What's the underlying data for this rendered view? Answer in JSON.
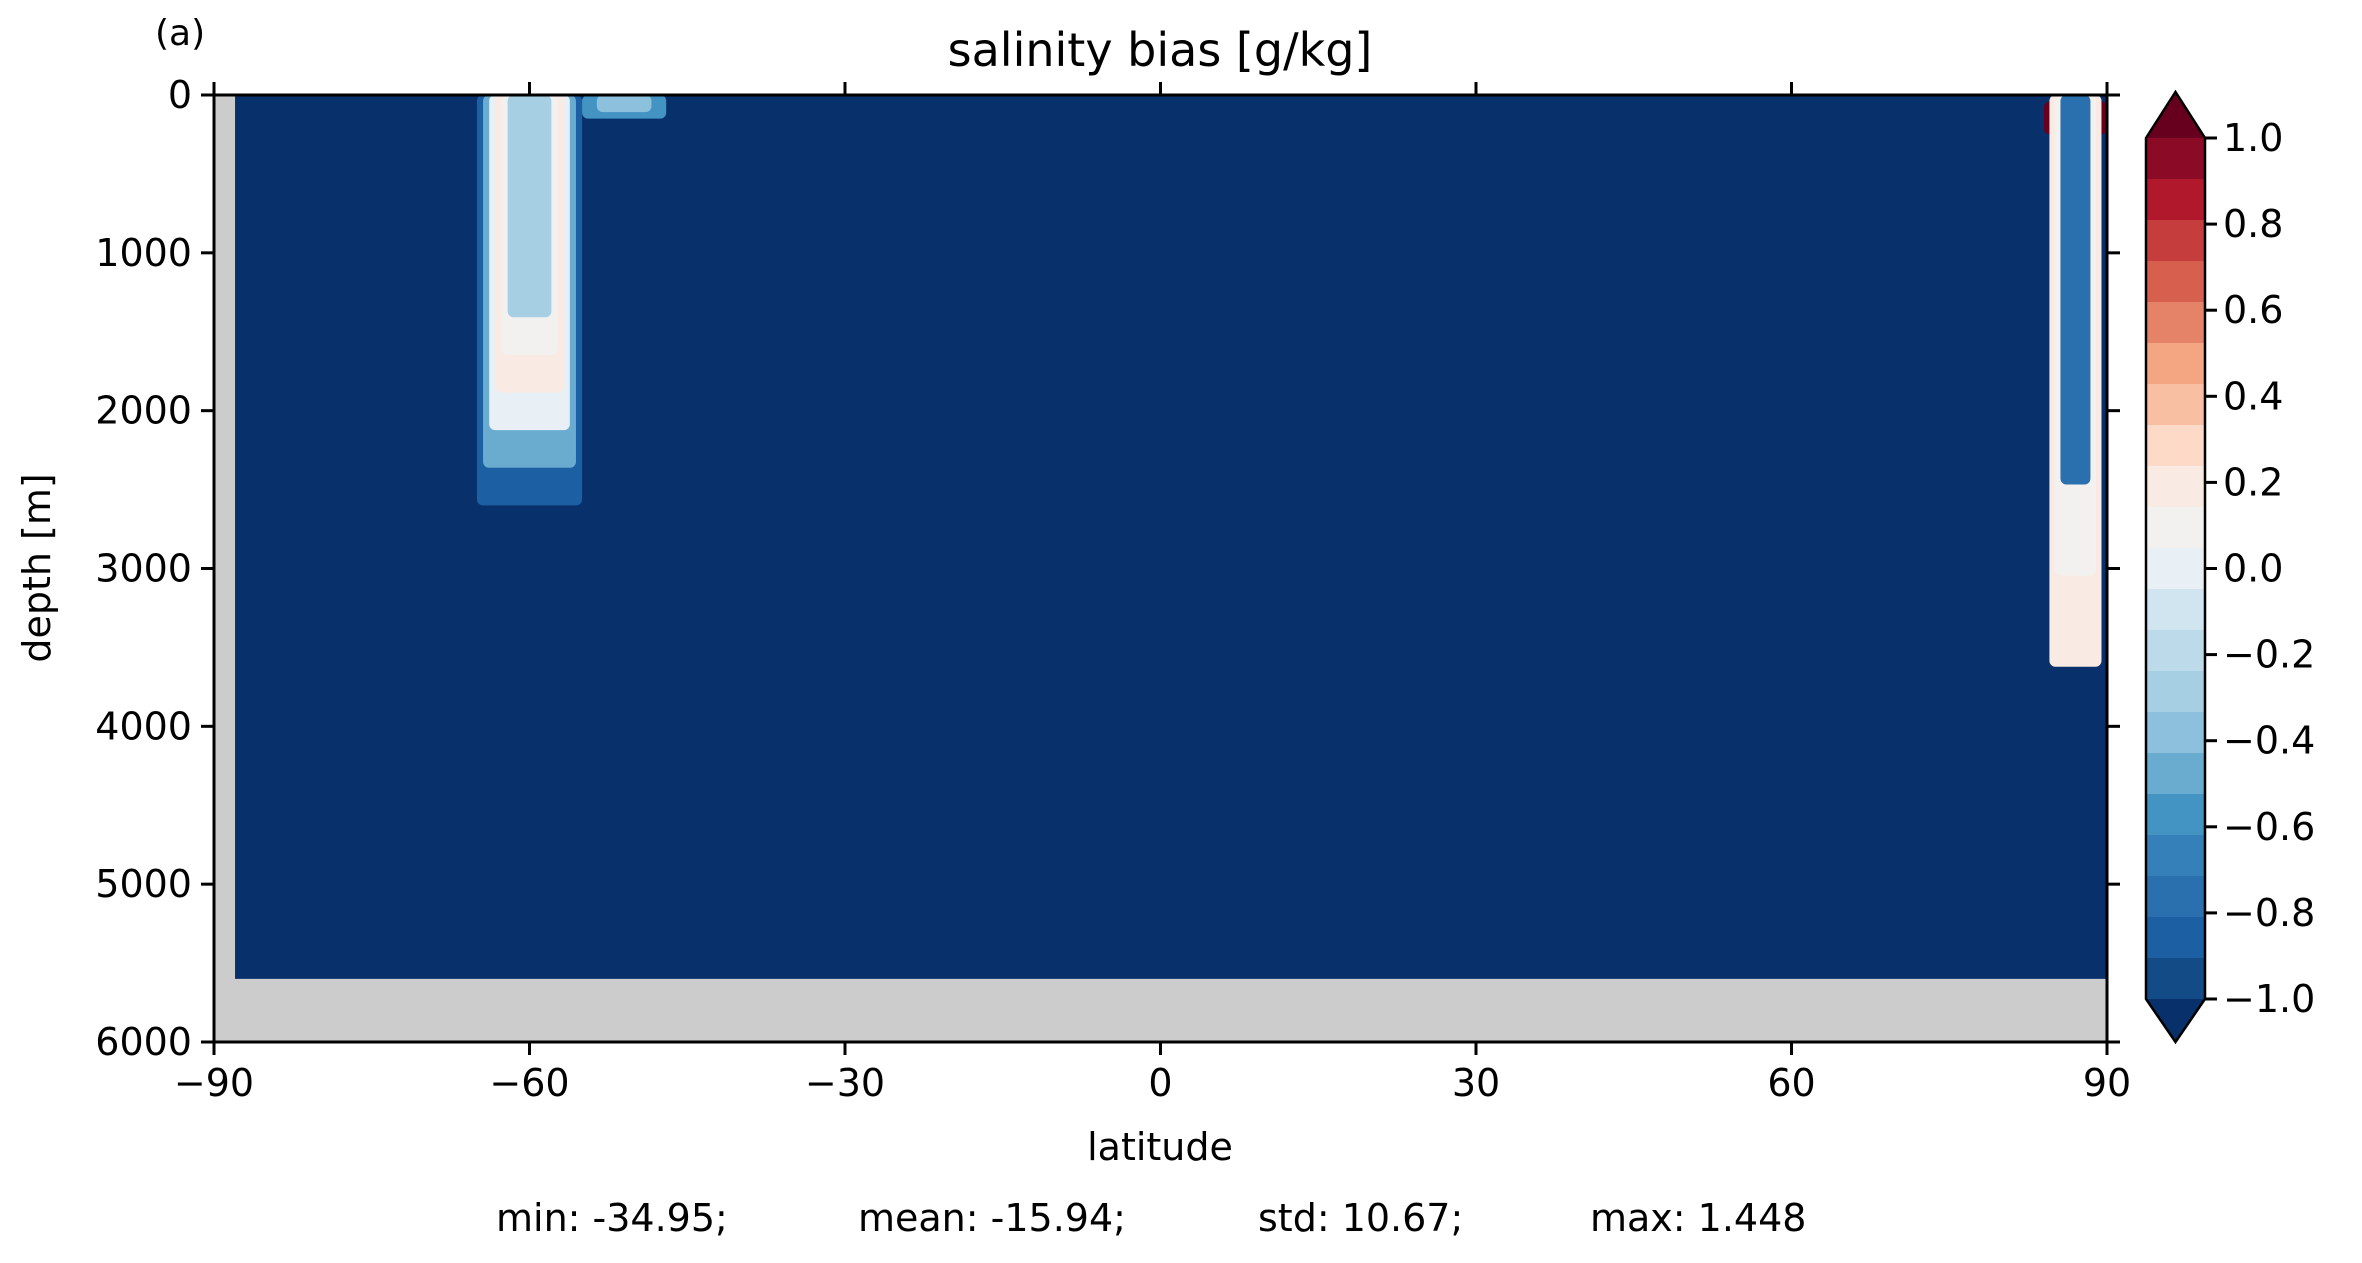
{
  "chart_data": {
    "type": "heatmap",
    "panel_label": "(a)",
    "title": "salinity bias [g/kg]",
    "xlabel": "latitude",
    "ylabel": "depth [m]",
    "xlim": [
      -90,
      90
    ],
    "ylim": [
      6000,
      0
    ],
    "xticks": [
      -90,
      -60,
      -30,
      0,
      30,
      60,
      90
    ],
    "yticks": [
      0,
      1000,
      2000,
      3000,
      4000,
      5000,
      6000
    ],
    "xtick_labels": [
      "−90",
      "−60",
      "−30",
      "0",
      "30",
      "60",
      "90"
    ],
    "ytick_labels": [
      "0",
      "1000",
      "2000",
      "3000",
      "4000",
      "5000",
      "6000"
    ],
    "background_value": -1.0,
    "ocean_bottom_depth": 5600,
    "ocean_lat_range": [
      -88,
      90
    ],
    "features": [
      {
        "region": "southern",
        "lat_range": [
          -65,
          -55
        ],
        "depth_range": [
          0,
          2600
        ],
        "values": [
          -0.9,
          -0.5,
          0.0,
          0.2,
          0.1,
          -0.3
        ]
      },
      {
        "region": "southern-tongue",
        "lat_range": [
          -55,
          -47
        ],
        "depth_range": [
          0,
          150
        ],
        "values": [
          -0.6,
          -0.4
        ]
      },
      {
        "region": "arctic",
        "lat_range": [
          84,
          90
        ],
        "depth_range": [
          0,
          4200
        ],
        "values": [
          1.0,
          0.2,
          0.1,
          -0.8
        ]
      }
    ],
    "colorbar": {
      "vmin": -1.0,
      "vmax": 1.0,
      "step": 0.1,
      "ticks": [
        1.0,
        0.8,
        0.6,
        0.4,
        0.2,
        0.0,
        -0.2,
        -0.4,
        -0.6,
        -0.8,
        -1.0
      ],
      "tick_labels": [
        "1.0",
        "0.8",
        "0.6",
        "0.4",
        "0.2",
        "0.0",
        "−0.2",
        "−0.4",
        "−0.6",
        "−0.8",
        "−1.0"
      ],
      "extend": "both",
      "colors_high_to_low": [
        "#8b0a25",
        "#b2182b",
        "#c53e3d",
        "#d6604d",
        "#e58368",
        "#f4a582",
        "#f8bfa2",
        "#fcdac7",
        "#f9ebe3",
        "#f3f1f0",
        "#e9f0f5",
        "#d1e5f0",
        "#bcdaea",
        "#a7cfe4",
        "#8cc0dd",
        "#6aacd0",
        "#4393c3",
        "#3580b9",
        "#2a6fae",
        "#1d5fa3",
        "#134b87"
      ],
      "under_color": "#08306b",
      "over_color": "#67001f"
    },
    "land_color": "#cccccc"
  },
  "stats": {
    "min": "min: -34.95;",
    "mean": "mean: -15.94;",
    "std": "std: 10.67;",
    "max": "max: 1.448"
  }
}
